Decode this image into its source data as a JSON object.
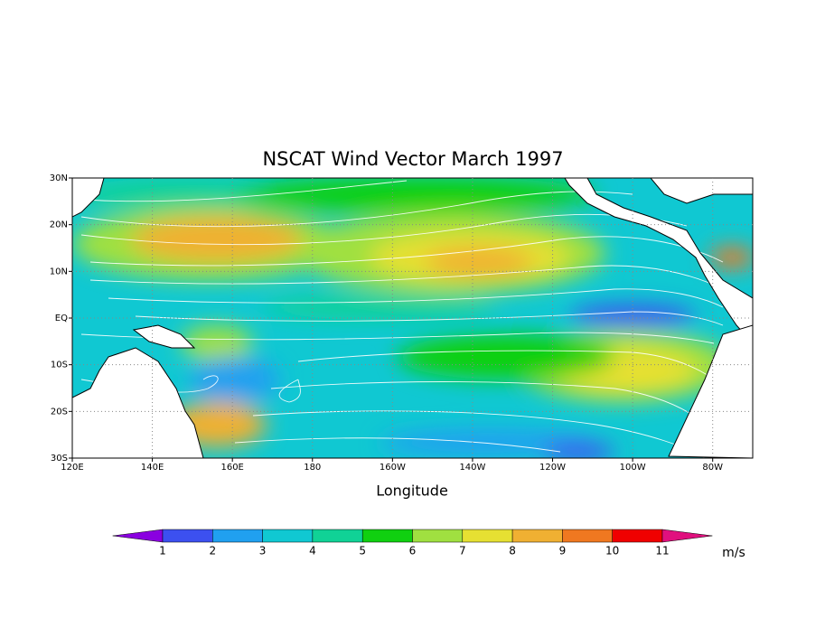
{
  "chart_data": {
    "type": "map",
    "title": "NSCAT Wind Vector  March 1997",
    "xlabel": "Longitude",
    "xlim": [
      120,
      290
    ],
    "ylim": [
      -30,
      30
    ],
    "xticks": [
      {
        "value": 120,
        "label": "120E"
      },
      {
        "value": 140,
        "label": "140E"
      },
      {
        "value": 160,
        "label": "160E"
      },
      {
        "value": 180,
        "label": "180"
      },
      {
        "value": 200,
        "label": "160W"
      },
      {
        "value": 220,
        "label": "140W"
      },
      {
        "value": 240,
        "label": "120W"
      },
      {
        "value": 260,
        "label": "100W"
      },
      {
        "value": 280,
        "label": "80W"
      }
    ],
    "yticks": [
      {
        "value": 30,
        "label": "30N"
      },
      {
        "value": 20,
        "label": "20N"
      },
      {
        "value": 10,
        "label": "10N"
      },
      {
        "value": 0,
        "label": "EQ"
      },
      {
        "value": -10,
        "label": "10S"
      },
      {
        "value": -20,
        "label": "20S"
      },
      {
        "value": -30,
        "label": "30S"
      }
    ],
    "grid": true,
    "colorbar": {
      "unit": "m/s",
      "levels": [
        1,
        2,
        3,
        4,
        5,
        6,
        7,
        8,
        9,
        10,
        11
      ],
      "colors": [
        "#8a00e0",
        "#3c50f0",
        "#20a0f0",
        "#10c8d2",
        "#10d296",
        "#10d010",
        "#a0e040",
        "#e6e032",
        "#f0b032",
        "#f07820",
        "#f00000",
        "#e0107e"
      ]
    }
  }
}
